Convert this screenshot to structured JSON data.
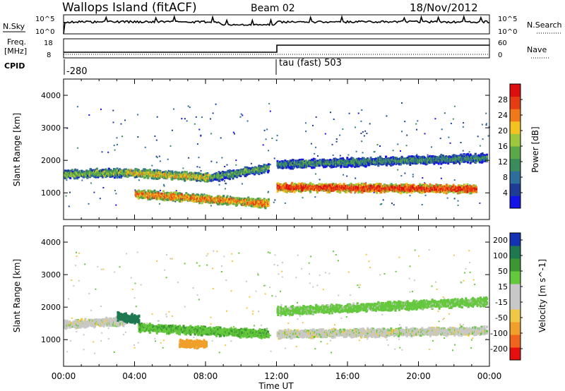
{
  "header": {
    "station": "Wallops Island (fitACF)",
    "beam": "Beam 02",
    "date": "18/Nov/2012"
  },
  "left_labels": {
    "nsky": "N.Sky",
    "freq_line1": "Freq.",
    "freq_line2": "[MHz]",
    "cpid": "CPID"
  },
  "right_labels": {
    "nsearch": "N.Search",
    "nave": "Nave"
  },
  "strip_ticks": {
    "noise_left": [
      "10^5",
      "10^0"
    ],
    "noise_right": [
      "10^5",
      "10^0"
    ],
    "freq_left": [
      "18",
      "8"
    ],
    "freq_right": [
      "60",
      "0"
    ]
  },
  "cpid": {
    "first": "-280",
    "second": "tau (fast) 503"
  },
  "colors": {
    "power": [
      "#1414e6",
      "#1e3c96",
      "#2e6e9a",
      "#3a8c5a",
      "#5aa848",
      "#9cc83c",
      "#f2c21e",
      "#f07818",
      "#e63c14",
      "#dc0f0f"
    ],
    "velocity": [
      "#e60f0f",
      "#f0641e",
      "#f0a02a",
      "#f0c846",
      "#c8c8c8",
      "#c8c8c8",
      "#64c83c",
      "#3c9632",
      "#1e7850",
      "#1432b4"
    ]
  },
  "chart_data": [
    {
      "type": "heatmap",
      "name": "power",
      "xlabel": "Time UT",
      "ylabel": "Slant Range [km]",
      "xlim": [
        0,
        24
      ],
      "ylim": [
        180,
        4500
      ],
      "x_ticks": [
        "00:00",
        "04:00",
        "08:00",
        "12:00",
        "16:00",
        "20:00",
        "00:00"
      ],
      "y_ticks": [
        "1000",
        "2000",
        "3000",
        "4000"
      ],
      "colorbar_label": "Power [dB]",
      "colorbar_ticks": [
        "4",
        "8",
        "12",
        "16",
        "20",
        "24",
        "28"
      ],
      "colorbar_range": [
        0,
        30
      ],
      "features": [
        {
          "t_start": 0,
          "t_end": 3.5,
          "range_start": 1600,
          "range_end": 1650,
          "value": 14
        },
        {
          "t_start": 3.5,
          "t_end": 8.2,
          "range_start": 1650,
          "range_end": 1500,
          "value": 18
        },
        {
          "t_start": 8.2,
          "t_end": 11.5,
          "range_start": 1500,
          "range_end": 1800,
          "value": 12
        },
        {
          "t_start": 4.0,
          "t_end": 11.5,
          "range_start": 1000,
          "range_end": 700,
          "value": 22
        },
        {
          "t_start": 12.0,
          "t_end": 23.2,
          "range_start": 1200,
          "range_end": 1150,
          "value": 26
        },
        {
          "t_start": 12.0,
          "t_end": 23.8,
          "range_start": 1900,
          "range_end": 2100,
          "value": 10
        }
      ]
    },
    {
      "type": "heatmap",
      "name": "velocity",
      "xlabel": "Time UT",
      "ylabel": "Slant Range [km]",
      "xlim": [
        0,
        24
      ],
      "ylim": [
        180,
        4500
      ],
      "x_ticks": [
        "00:00",
        "04:00",
        "08:00",
        "12:00",
        "16:00",
        "20:00",
        "00:00"
      ],
      "y_ticks": [
        "1000",
        "2000",
        "3000",
        "4000"
      ],
      "colorbar_label": "Velocity [m s^-1]",
      "colorbar_ticks": [
        "200",
        "100",
        "50",
        "15",
        "-15",
        "-50",
        "-100",
        "-200"
      ],
      "features": [
        {
          "t_start": 0,
          "t_end": 3.5,
          "range_start": 1500,
          "range_end": 1600,
          "value": 0
        },
        {
          "t_start": 3.0,
          "t_end": 4.2,
          "range_start": 1750,
          "range_end": 1650,
          "value": 180
        },
        {
          "t_start": 4.2,
          "t_end": 11.5,
          "range_start": 1400,
          "range_end": 1200,
          "value": 40
        },
        {
          "t_start": 6.5,
          "t_end": 8.0,
          "range_start": 900,
          "range_end": 900,
          "value": -70
        },
        {
          "t_start": 12.0,
          "t_end": 23.8,
          "range_start": 1200,
          "range_end": 1300,
          "value": 0
        },
        {
          "t_start": 12.0,
          "t_end": 23.8,
          "range_start": 1900,
          "range_end": 2200,
          "value": 30
        }
      ]
    }
  ]
}
